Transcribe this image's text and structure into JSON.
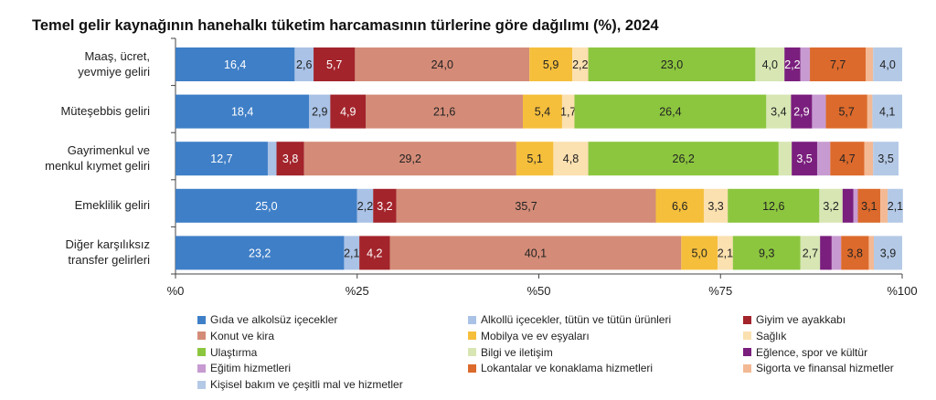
{
  "chart_data": {
    "type": "bar",
    "orientation": "horizontal",
    "stacked": true,
    "title": "Temel gelir kaynağının hanehalkı tüketim harcamasının türlerine göre dağılımı (%), 2024",
    "xlim": [
      0,
      100
    ],
    "x_ticks": [
      "%0",
      "%25",
      "%50",
      "%75",
      "%100"
    ],
    "grid": false,
    "legend_position": "bottom",
    "categories": [
      "Maaş, ücret,\nyevmiye geliri",
      "Müteşebbis geliri",
      "Gayrimenkul ve\nmenkul kıymet geliri",
      "Emeklilik geliri",
      "Diğer karşılıksız\ntransfer gelirleri"
    ],
    "series": [
      {
        "name": "Gıda ve alkolsüz içecekler",
        "color": "#3f7fc7",
        "label_color": "#ffffff",
        "values": [
          16.4,
          18.4,
          12.7,
          25.0,
          23.2
        ],
        "labels": [
          "16,4",
          "18,4",
          "12,7",
          "25,0",
          "23,2"
        ]
      },
      {
        "name": "Alkollü içecekler, tütün ve tütün ürünleri",
        "color": "#a9c2e6",
        "label_color": "#222222",
        "values": [
          2.6,
          2.9,
          1.2,
          2.2,
          2.1
        ],
        "labels": [
          "2,6",
          "2,9",
          "",
          "2,2",
          "2,1"
        ]
      },
      {
        "name": "Giyim ve ayakkabı",
        "color": "#a3242b",
        "label_color": "#ffffff",
        "values": [
          5.7,
          4.9,
          3.8,
          3.2,
          4.2
        ],
        "labels": [
          "5,7",
          "4,9",
          "3,8",
          "3,2",
          "4,2"
        ]
      },
      {
        "name": "Konut ve kira",
        "color": "#d48c78",
        "label_color": "#222222",
        "values": [
          24.0,
          21.6,
          29.2,
          35.7,
          40.1
        ],
        "labels": [
          "24,0",
          "21,6",
          "29,2",
          "35,7",
          "40,1"
        ]
      },
      {
        "name": "Mobilya ve ev eşyaları",
        "color": "#f5bf3c",
        "label_color": "#222222",
        "values": [
          5.9,
          5.4,
          5.1,
          6.6,
          5.0
        ],
        "labels": [
          "5,9",
          "5,4",
          "5,1",
          "6,6",
          "5,0"
        ]
      },
      {
        "name": "Sağlık",
        "color": "#fbe0b0",
        "label_color": "#222222",
        "values": [
          2.2,
          1.7,
          4.8,
          3.3,
          2.1
        ],
        "labels": [
          "2,2",
          "1,7",
          "4,8",
          "3,3",
          "2,1"
        ]
      },
      {
        "name": "Ulaştırma",
        "color": "#8cc63f",
        "label_color": "#222222",
        "values": [
          23.0,
          26.4,
          26.2,
          12.6,
          9.3
        ],
        "labels": [
          "23,0",
          "26,4",
          "26,2",
          "12,6",
          "9,3"
        ]
      },
      {
        "name": "Bilgi ve iletişim",
        "color": "#d7e6b3",
        "label_color": "#222222",
        "values": [
          4.0,
          3.4,
          1.8,
          3.2,
          2.7
        ],
        "labels": [
          "4,0",
          "3,4",
          "",
          "3,2",
          "2,7"
        ]
      },
      {
        "name": "Eğlence, spor ve kültür",
        "color": "#7a1f7d",
        "label_color": "#ffffff",
        "values": [
          2.2,
          2.9,
          3.5,
          1.5,
          1.6
        ],
        "labels": [
          "2,2",
          "2,9",
          "3,5",
          "",
          ""
        ]
      },
      {
        "name": "Eğitim hizmetleri",
        "color": "#c79bd1",
        "label_color": "#222222",
        "values": [
          1.3,
          1.9,
          1.8,
          0.6,
          1.3
        ],
        "labels": [
          "",
          "",
          "",
          "",
          ""
        ]
      },
      {
        "name": "Lokantalar ve konaklama hizmetleri",
        "color": "#dc6a2c",
        "label_color": "#222222",
        "values": [
          7.7,
          5.7,
          4.7,
          3.1,
          3.8
        ],
        "labels": [
          "7,7",
          "5,7",
          "4,7",
          "3,1",
          "3,8"
        ]
      },
      {
        "name": "Sigorta ve finansal hizmetler",
        "color": "#f3b994",
        "label_color": "#222222",
        "values": [
          1.0,
          0.7,
          1.2,
          1.0,
          0.7
        ],
        "labels": [
          "",
          "",
          "",
          "",
          ""
        ]
      },
      {
        "name": "Kişisel bakım ve çeşitli mal ve hizmetler",
        "color": "#b4c9e6",
        "label_color": "#222222",
        "values": [
          4.0,
          4.1,
          3.5,
          2.1,
          3.9
        ],
        "labels": [
          "4,0",
          "4,1",
          "3,5",
          "2,1",
          "3,9"
        ]
      }
    ]
  }
}
